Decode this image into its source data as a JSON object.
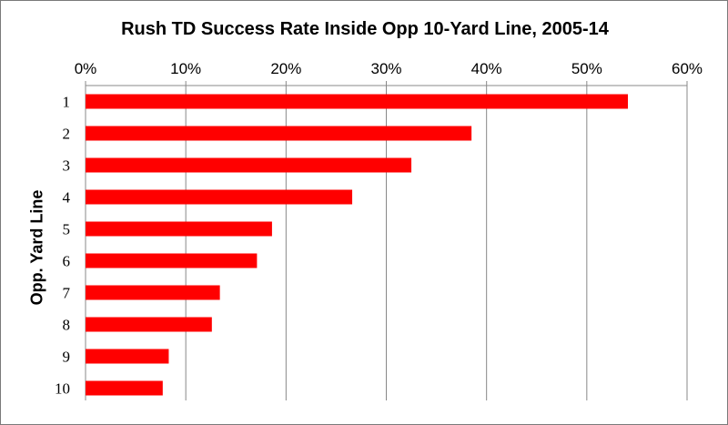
{
  "chart_data": {
    "type": "bar",
    "orientation": "horizontal",
    "title": "Rush TD Success Rate Inside Opp 10-Yard Line, 2005-14",
    "xlabel": "",
    "ylabel": "Opp. Yard Line",
    "categories": [
      "1",
      "2",
      "3",
      "4",
      "5",
      "6",
      "7",
      "8",
      "9",
      "10"
    ],
    "values": [
      0.541,
      0.385,
      0.325,
      0.266,
      0.186,
      0.171,
      0.134,
      0.126,
      0.083,
      0.077
    ],
    "xlim": [
      0,
      0.6
    ],
    "x_ticks": [
      0,
      0.1,
      0.2,
      0.3,
      0.4,
      0.5,
      0.6
    ],
    "x_tick_labels": [
      "0%",
      "10%",
      "20%",
      "30%",
      "40%",
      "50%",
      "60%"
    ],
    "x_axis_position": "top",
    "grid": true,
    "legend": "none",
    "bar_color": "#ff0000",
    "grid_color": "#888888"
  }
}
